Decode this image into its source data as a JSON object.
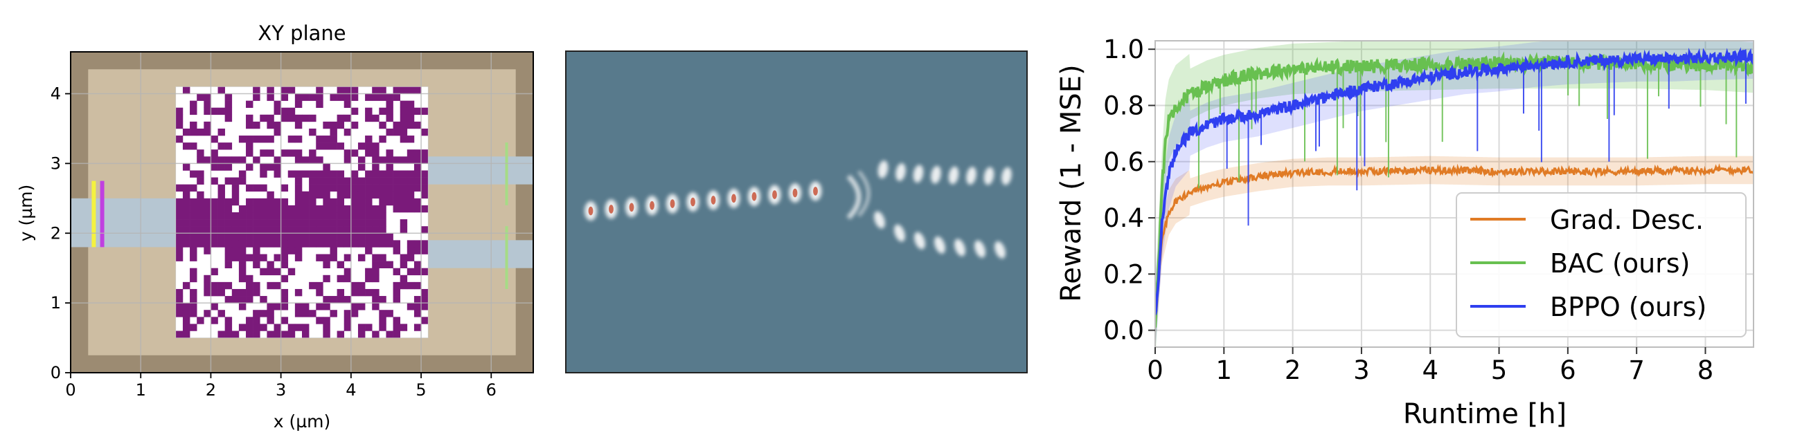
{
  "chart_data": [
    {
      "type": "heatmap",
      "title": "XY plane",
      "xlabel": "x (µm)",
      "ylabel": "y (µm)",
      "xlim": [
        0,
        6.6
      ],
      "ylim": [
        0,
        4.6
      ],
      "x_ticks": [
        "0",
        "1",
        "2",
        "3",
        "4",
        "5",
        "6"
      ],
      "y_ticks": [
        "0",
        "1",
        "2",
        "3",
        "4"
      ],
      "grid": true,
      "design_region": {
        "x": [
          1.5,
          5.1
        ],
        "y": [
          0.5,
          4.1
        ],
        "grid_cells": 36
      },
      "input_waveguide": {
        "x": [
          0,
          1.5
        ],
        "y": [
          1.8,
          2.5
        ]
      },
      "output_waveguides": [
        {
          "x": [
            5.1,
            6.6
          ],
          "y": [
            2.7,
            3.1
          ]
        },
        {
          "x": [
            5.1,
            6.6
          ],
          "y": [
            1.5,
            1.9
          ]
        }
      ],
      "source_lines": [
        {
          "x": 0.33,
          "y": [
            1.8,
            2.75
          ]
        },
        {
          "x": 0.45,
          "y": [
            1.8,
            2.75
          ]
        }
      ],
      "monitor_lines": [
        {
          "x": 6.22,
          "y": [
            2.4,
            3.3
          ]
        },
        {
          "x": 6.22,
          "y": [
            1.2,
            2.1
          ]
        }
      ],
      "colors": {
        "frame": "#9c8b72",
        "substrate": "#cdbda2",
        "waveguide": "#b6c6d2",
        "material": "#7a1a7a",
        "empty": "#ffffff",
        "source_yellow": "#f4f240",
        "source_magenta": "#c040e0",
        "monitor": "#a6dc86"
      }
    },
    {
      "type": "heatmap",
      "title": "",
      "colors": {
        "background": "#587a8c",
        "field_light": "#f2f4f5",
        "field_core": "#c8533a"
      },
      "field_path": {
        "input_pulses": 12,
        "upper_branch_pulses": 8,
        "lower_branch_pulses": 7
      }
    },
    {
      "type": "line",
      "title": "",
      "xlabel": "Runtime [h]",
      "ylabel": "Reward (1 - MSE)",
      "xlim": [
        0,
        8.7
      ],
      "ylim": [
        -0.06,
        1.03
      ],
      "x_ticks": [
        0,
        1,
        2,
        3,
        4,
        5,
        6,
        7,
        8
      ],
      "y_ticks": [
        "0.0",
        "0.2",
        "0.4",
        "0.6",
        "0.8",
        "1.0"
      ],
      "grid": true,
      "legend": "lower-right",
      "series": [
        {
          "name": "Grad. Desc.",
          "color": "#e07b25",
          "x": [
            0,
            0.05,
            0.1,
            0.2,
            0.3,
            0.5,
            0.75,
            1,
            1.25,
            1.5,
            2,
            2.5,
            3,
            4,
            5,
            6,
            7,
            8,
            8.7
          ],
          "y": [
            0.02,
            0.18,
            0.32,
            0.42,
            0.46,
            0.49,
            0.51,
            0.525,
            0.535,
            0.545,
            0.56,
            0.565,
            0.565,
            0.57,
            0.565,
            0.565,
            0.565,
            0.57,
            0.57
          ]
        },
        {
          "name": "BAC (ours)",
          "color": "#68c050",
          "x": [
            0,
            0.05,
            0.1,
            0.15,
            0.2,
            0.3,
            0.5,
            0.75,
            1,
            1.5,
            2,
            3,
            4,
            5,
            6,
            7,
            8,
            8.7
          ],
          "y": [
            0.03,
            0.25,
            0.5,
            0.68,
            0.75,
            0.8,
            0.84,
            0.87,
            0.89,
            0.915,
            0.93,
            0.94,
            0.945,
            0.95,
            0.95,
            0.95,
            0.945,
            0.935
          ]
        },
        {
          "name": "BPPO (ours)",
          "color": "#2f3ff0",
          "x": [
            0,
            0.05,
            0.1,
            0.2,
            0.3,
            0.5,
            0.75,
            1,
            1.5,
            2,
            2.5,
            3,
            3.5,
            4,
            4.5,
            5,
            5.5,
            6,
            6.5,
            7,
            7.5,
            8,
            8.7
          ],
          "y": [
            0.05,
            0.2,
            0.38,
            0.56,
            0.64,
            0.7,
            0.73,
            0.75,
            0.77,
            0.8,
            0.83,
            0.86,
            0.88,
            0.9,
            0.92,
            0.93,
            0.945,
            0.955,
            0.96,
            0.965,
            0.965,
            0.97,
            0.975
          ]
        }
      ]
    }
  ]
}
